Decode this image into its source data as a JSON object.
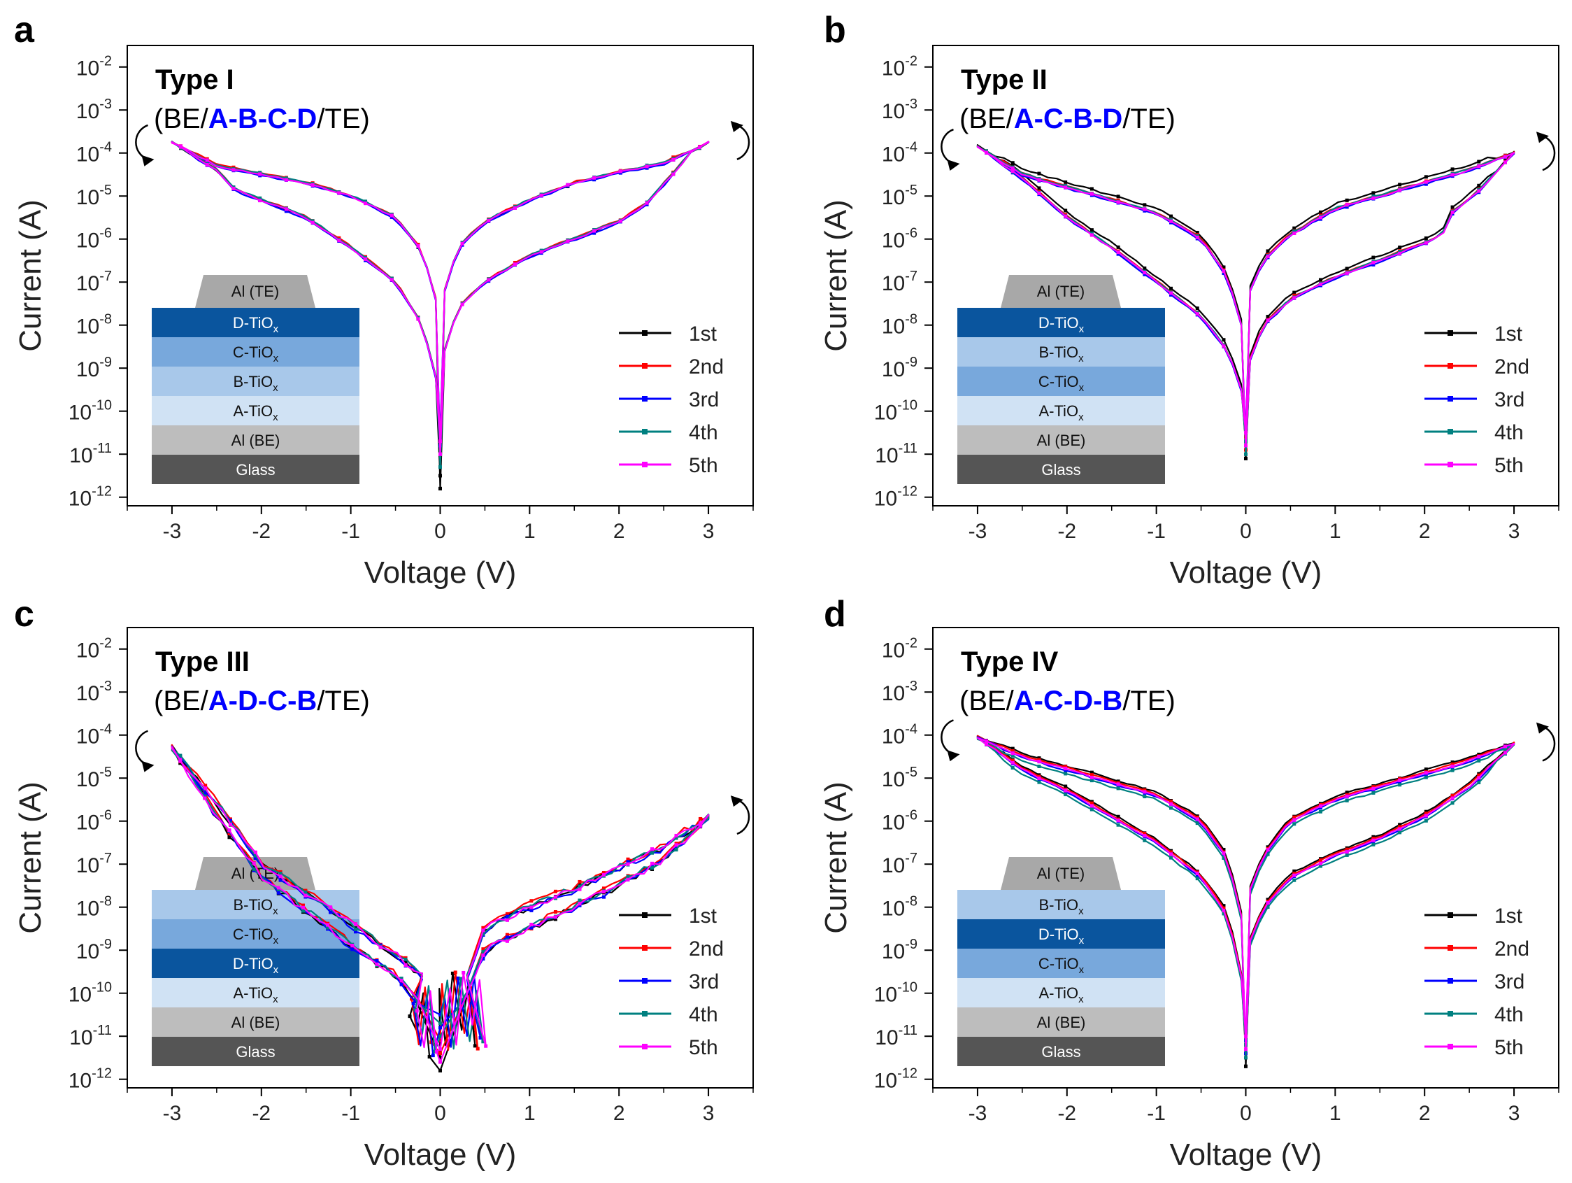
{
  "figure": {
    "legend": [
      "1st",
      "2nd",
      "3rd",
      "4th",
      "5th"
    ],
    "series_colors": [
      "#000000",
      "#ff0000",
      "#0000ff",
      "#008080",
      "#ff00ff"
    ],
    "layer_colors": {
      "Al (TE)": "#a8a8a8",
      "D-TiOx": "#0a559e",
      "C-TiOx": "#78a8dc",
      "B-TiOx": "#a8c8ea",
      "A-TiOx": "#d0e2f4",
      "Al (BE)": "#bdbdbd",
      "Glass": "#555555"
    },
    "title_color": "#0000ff"
  },
  "chart_data": [
    {
      "panel": "a",
      "type": "line",
      "title": "Type I",
      "subtitle_prefix": "(BE/",
      "subtitle_highlight": "A-B-C-D",
      "subtitle_suffix": "/TE)",
      "xlabel": "Voltage (V)",
      "ylabel": "Current (A)",
      "xlim": [
        -3.5,
        3.5
      ],
      "ylim_log10": [
        -12.2,
        -1.5
      ],
      "xticks": [
        -3,
        -2,
        -1,
        0,
        1,
        2,
        3
      ],
      "xtick_labels": [
        "-3",
        "-2",
        "-1",
        "0",
        "1",
        "2",
        "3"
      ],
      "yticks_log10": [
        -12,
        -11,
        -10,
        -9,
        -8,
        -7,
        -6,
        -5,
        -4,
        -3,
        -2
      ],
      "ytick_labels": [
        "10-12",
        "10-11",
        "10-10",
        "10-9",
        "10-8",
        "10-7",
        "10-6",
        "10-5",
        "10-4",
        "10-3",
        "10-2"
      ],
      "legend": [
        "1st",
        "2nd",
        "3rd",
        "4th",
        "5th"
      ],
      "stack": [
        {
          "label": "Al (TE)",
          "base": "Al",
          "sub": "(TE)"
        },
        {
          "label": "D-TiOx",
          "base": "D-TiO",
          "sub": "x"
        },
        {
          "label": "C-TiOx",
          "base": "C-TiO",
          "sub": "x"
        },
        {
          "label": "B-TiOx",
          "base": "B-TiO",
          "sub": "x"
        },
        {
          "label": "A-TiOx",
          "base": "A-TiO",
          "sub": "x"
        },
        {
          "label": "Al (BE)",
          "base": "Al",
          "sub": "(BE)"
        },
        {
          "label": "Glass",
          "base": "Glass",
          "sub": ""
        }
      ],
      "neg_hi": [
        [
          -3,
          -3.75
        ],
        [
          -2.5,
          -4.3
        ],
        [
          -2,
          -4.5
        ],
        [
          -1.5,
          -4.7
        ],
        [
          -1,
          -5.0
        ],
        [
          -0.5,
          -5.5
        ],
        [
          -0.2,
          -6.3
        ],
        [
          -0.05,
          -7.4
        ]
      ],
      "neg_lo": [
        [
          -3,
          -3.75
        ],
        [
          -2.5,
          -4.4
        ],
        [
          -2.3,
          -4.85
        ],
        [
          -2,
          -5.1
        ],
        [
          -1.5,
          -5.5
        ],
        [
          -1,
          -6.2
        ],
        [
          -0.5,
          -7.0
        ],
        [
          -0.2,
          -8.0
        ],
        [
          -0.05,
          -9.2
        ]
      ],
      "pos_hi": [
        [
          0.05,
          -7.2
        ],
        [
          0.2,
          -6.2
        ],
        [
          0.5,
          -5.6
        ],
        [
          1,
          -5.1
        ],
        [
          1.5,
          -4.7
        ],
        [
          2,
          -4.45
        ],
        [
          2.5,
          -4.25
        ],
        [
          3,
          -3.75
        ]
      ],
      "pos_lo": [
        [
          0.05,
          -8.6
        ],
        [
          0.2,
          -7.6
        ],
        [
          0.5,
          -7.0
        ],
        [
          1,
          -6.4
        ],
        [
          1.5,
          -6.0
        ],
        [
          2,
          -5.6
        ],
        [
          2.3,
          -5.2
        ],
        [
          2.6,
          -4.5
        ],
        [
          2.8,
          -4.0
        ],
        [
          3,
          -3.75
        ]
      ],
      "dip": [
        -11.8,
        -11.0,
        -10.8,
        -11.3,
        -11.0
      ],
      "shifts": [
        0,
        0.03,
        -0.02,
        0.02,
        0
      ],
      "noise": 0.02,
      "mode": "normal"
    },
    {
      "panel": "b",
      "type": "line",
      "title": "Type II",
      "subtitle_prefix": "(BE/",
      "subtitle_highlight": "A-C-B-D",
      "subtitle_suffix": "/TE)",
      "xlabel": "Voltage (V)",
      "ylabel": "Current (A)",
      "xlim": [
        -3.5,
        3.5
      ],
      "ylim_log10": [
        -12.2,
        -1.5
      ],
      "xticks": [
        -3,
        -2,
        -1,
        0,
        1,
        2,
        3
      ],
      "xtick_labels": [
        "-3",
        "-2",
        "-1",
        "0",
        "1",
        "2",
        "3"
      ],
      "yticks_log10": [
        -12,
        -11,
        -10,
        -9,
        -8,
        -7,
        -6,
        -5,
        -4,
        -3,
        -2
      ],
      "ytick_labels": [
        "10-12",
        "10-11",
        "10-10",
        "10-9",
        "10-8",
        "10-7",
        "10-6",
        "10-5",
        "10-4",
        "10-3",
        "10-2"
      ],
      "legend": [
        "1st",
        "2nd",
        "3rd",
        "4th",
        "5th"
      ],
      "stack": [
        {
          "label": "Al (TE)",
          "base": "Al",
          "sub": "(TE)"
        },
        {
          "label": "D-TiOx",
          "base": "D-TiO",
          "sub": "x"
        },
        {
          "label": "B-TiOx",
          "base": "B-TiO",
          "sub": "x"
        },
        {
          "label": "C-TiOx",
          "base": "C-TiO",
          "sub": "x"
        },
        {
          "label": "A-TiOx",
          "base": "A-TiO",
          "sub": "x"
        },
        {
          "label": "Al (BE)",
          "base": "Al",
          "sub": "(BE)"
        },
        {
          "label": "Glass",
          "base": "Glass",
          "sub": ""
        }
      ],
      "neg_hi": [
        [
          -3,
          -3.85
        ],
        [
          -2.5,
          -4.5
        ],
        [
          -2,
          -4.8
        ],
        [
          -1.5,
          -5.1
        ],
        [
          -1,
          -5.4
        ],
        [
          -0.5,
          -6.0
        ],
        [
          -0.2,
          -6.9
        ],
        [
          -0.05,
          -8.0
        ]
      ],
      "neg_lo": [
        [
          -3,
          -3.85
        ],
        [
          -2.5,
          -4.6
        ],
        [
          -2,
          -5.5
        ],
        [
          -1.5,
          -6.2
        ],
        [
          -1,
          -7.0
        ],
        [
          -0.5,
          -7.8
        ],
        [
          -0.2,
          -8.6
        ],
        [
          -0.05,
          -9.5
        ]
      ],
      "pos_hi": [
        [
          0.05,
          -7.2
        ],
        [
          0.2,
          -6.5
        ],
        [
          0.5,
          -5.9
        ],
        [
          1,
          -5.3
        ],
        [
          1.5,
          -5.0
        ],
        [
          2,
          -4.7
        ],
        [
          2.5,
          -4.4
        ],
        [
          3,
          -4.0
        ]
      ],
      "pos_lo": [
        [
          0.05,
          -8.8
        ],
        [
          0.2,
          -8.0
        ],
        [
          0.5,
          -7.4
        ],
        [
          1,
          -6.9
        ],
        [
          1.5,
          -6.5
        ],
        [
          2,
          -6.1
        ],
        [
          2.2,
          -5.9
        ],
        [
          2.3,
          -5.4
        ],
        [
          2.6,
          -4.9
        ],
        [
          3,
          -4.0
        ]
      ],
      "dip": [
        -11.1,
        -10.9,
        -10.7,
        -11.0,
        -10.8
      ],
      "shifts": [
        0.12,
        0.03,
        -0.02,
        0.02,
        0
      ],
      "noise": 0.02,
      "mode": "normal"
    },
    {
      "panel": "c",
      "type": "line",
      "title": "Type III",
      "subtitle_prefix": "(BE/",
      "subtitle_highlight": "A-D-C-B",
      "subtitle_suffix": "/TE)",
      "xlabel": "Voltage (V)",
      "ylabel": "Current (A)",
      "xlim": [
        -3.5,
        3.5
      ],
      "ylim_log10": [
        -12.2,
        -1.5
      ],
      "xticks": [
        -3,
        -2,
        -1,
        0,
        1,
        2,
        3
      ],
      "xtick_labels": [
        "-3",
        "-2",
        "-1",
        "0",
        "1",
        "2",
        "3"
      ],
      "yticks_log10": [
        -12,
        -11,
        -10,
        -9,
        -8,
        -7,
        -6,
        -5,
        -4,
        -3,
        -2
      ],
      "ytick_labels": [
        "10-12",
        "10-11",
        "10-10",
        "10-9",
        "10-8",
        "10-7",
        "10-6",
        "10-5",
        "10-4",
        "10-3",
        "10-2"
      ],
      "legend": [
        "1st",
        "2nd",
        "3rd",
        "4th",
        "5th"
      ],
      "stack": [
        {
          "label": "Al (TE)",
          "base": "Al",
          "sub": "(TE)"
        },
        {
          "label": "B-TiOx",
          "base": "B-TiO",
          "sub": "x"
        },
        {
          "label": "C-TiOx",
          "base": "C-TiO",
          "sub": "x"
        },
        {
          "label": "D-TiOx",
          "base": "D-TiO",
          "sub": "x"
        },
        {
          "label": "A-TiOx",
          "base": "A-TiO",
          "sub": "x"
        },
        {
          "label": "Al (BE)",
          "base": "Al",
          "sub": "(BE)"
        },
        {
          "label": "Glass",
          "base": "Glass",
          "sub": ""
        }
      ],
      "neg_hi": [
        [
          -3,
          -4.3
        ],
        [
          -2.5,
          -5.6
        ],
        [
          -2,
          -7.0
        ],
        [
          -1.5,
          -7.7
        ],
        [
          -1,
          -8.4
        ],
        [
          -0.5,
          -9.1
        ],
        [
          -0.2,
          -9.6
        ]
      ],
      "neg_lo": [
        [
          -3,
          -4.3
        ],
        [
          -2.5,
          -5.9
        ],
        [
          -2,
          -7.3
        ],
        [
          -1.5,
          -8.1
        ],
        [
          -1,
          -8.9
        ],
        [
          -0.5,
          -9.6
        ],
        [
          -0.25,
          -10.2
        ]
      ],
      "pos_hi": [
        [
          0.3,
          -9.6
        ],
        [
          0.5,
          -8.5
        ],
        [
          1,
          -8.0
        ],
        [
          1.5,
          -7.6
        ],
        [
          2,
          -7.1
        ],
        [
          2.5,
          -6.6
        ],
        [
          3,
          -5.9
        ]
      ],
      "pos_lo": [
        [
          0.3,
          -10.0
        ],
        [
          0.5,
          -9.0
        ],
        [
          1,
          -8.5
        ],
        [
          1.5,
          -8.0
        ],
        [
          2,
          -7.5
        ],
        [
          2.5,
          -6.9
        ],
        [
          3,
          -5.9
        ]
      ],
      "dip": [
        -11.8,
        -11.4,
        -10.8,
        -11.0,
        -11.6
      ],
      "shifts": [
        0,
        0.06,
        -0.02,
        0.03,
        0.01
      ],
      "noise": 0.08,
      "mode": "noisy"
    },
    {
      "panel": "d",
      "type": "line",
      "title": "Type IV",
      "subtitle_prefix": "(BE/",
      "subtitle_highlight": "A-C-D-B",
      "subtitle_suffix": "/TE)",
      "xlabel": "Voltage (V)",
      "ylabel": "Current (A)",
      "xlim": [
        -3.5,
        3.5
      ],
      "ylim_log10": [
        -12.2,
        -1.5
      ],
      "xticks": [
        -3,
        -2,
        -1,
        0,
        1,
        2,
        3
      ],
      "xtick_labels": [
        "-3",
        "-2",
        "-1",
        "0",
        "1",
        "2",
        "3"
      ],
      "yticks_log10": [
        -12,
        -11,
        -10,
        -9,
        -8,
        -7,
        -6,
        -5,
        -4,
        -3,
        -2
      ],
      "ytick_labels": [
        "10-12",
        "10-11",
        "10-10",
        "10-9",
        "10-8",
        "10-7",
        "10-6",
        "10-5",
        "10-4",
        "10-3",
        "10-2"
      ],
      "legend": [
        "1st",
        "2nd",
        "3rd",
        "4th",
        "5th"
      ],
      "stack": [
        {
          "label": "Al (TE)",
          "base": "Al",
          "sub": "(TE)"
        },
        {
          "label": "B-TiOx",
          "base": "B-TiO",
          "sub": "x"
        },
        {
          "label": "D-TiOx",
          "base": "D-TiO",
          "sub": "x"
        },
        {
          "label": "C-TiOx",
          "base": "C-TiO",
          "sub": "x"
        },
        {
          "label": "A-TiOx",
          "base": "A-TiO",
          "sub": "x"
        },
        {
          "label": "Al (BE)",
          "base": "Al",
          "sub": "(BE)"
        },
        {
          "label": "Glass",
          "base": "Glass",
          "sub": ""
        }
      ],
      "neg_hi": [
        [
          -3,
          -4.05
        ],
        [
          -2.5,
          -4.5
        ],
        [
          -2,
          -4.8
        ],
        [
          -1.5,
          -5.1
        ],
        [
          -1,
          -5.4
        ],
        [
          -0.5,
          -6.0
        ],
        [
          -0.2,
          -6.9
        ],
        [
          -0.05,
          -8.2
        ]
      ],
      "neg_lo": [
        [
          -3,
          -4.05
        ],
        [
          -2.5,
          -4.8
        ],
        [
          -2,
          -5.3
        ],
        [
          -1.5,
          -5.9
        ],
        [
          -1,
          -6.5
        ],
        [
          -0.5,
          -7.3
        ],
        [
          -0.2,
          -8.2
        ],
        [
          -0.05,
          -9.6
        ]
      ],
      "pos_hi": [
        [
          0.05,
          -7.6
        ],
        [
          0.2,
          -6.8
        ],
        [
          0.5,
          -6.0
        ],
        [
          1,
          -5.5
        ],
        [
          1.5,
          -5.2
        ],
        [
          2,
          -4.9
        ],
        [
          2.5,
          -4.6
        ],
        [
          3,
          -4.2
        ]
      ],
      "pos_lo": [
        [
          0.05,
          -8.8
        ],
        [
          0.2,
          -8.0
        ],
        [
          0.5,
          -7.3
        ],
        [
          1,
          -6.8
        ],
        [
          1.5,
          -6.4
        ],
        [
          2,
          -5.9
        ],
        [
          2.5,
          -5.2
        ],
        [
          3,
          -4.2
        ]
      ],
      "dip": [
        -11.7,
        -11.5,
        -11.4,
        -11.5,
        -11.3
      ],
      "shifts": [
        0.08,
        0.04,
        -0.02,
        -0.1,
        0
      ],
      "noise": 0.02,
      "mode": "normal"
    }
  ]
}
